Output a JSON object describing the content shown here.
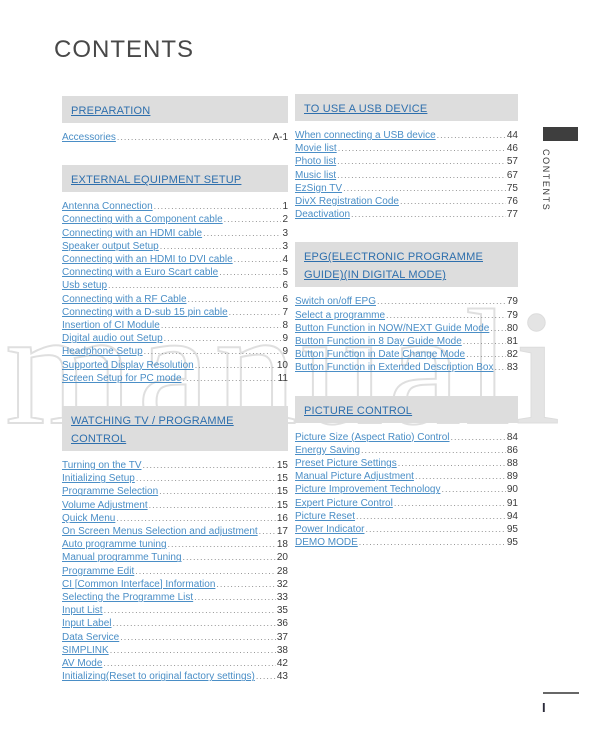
{
  "page": {
    "title": "CONTENTS"
  },
  "watermark": {
    "outline_text": "manual",
    "solid_text": "i"
  },
  "sidebar": {
    "tab_label": "CONTENTS",
    "page_marker": "I"
  },
  "colors": {
    "header_blue": "#2e6fad",
    "link_blue": "#4a8ec6",
    "bar_gray": "#dddddd",
    "watermark_gray": "#dfdfdf",
    "text_dark": "#3a3a3a",
    "tab_dark": "#3e3e3e"
  },
  "sections": {
    "preparation": {
      "header": "PREPARATION",
      "items": [
        {
          "label": "Accessories",
          "page": "A-1"
        }
      ]
    },
    "external_equipment_setup": {
      "header": "EXTERNAL EQUIPMENT SETUP",
      "items": [
        {
          "label": "Antenna Connection",
          "page": "1"
        },
        {
          "label": "Connecting with a Component cable",
          "page": "2"
        },
        {
          "label": "Connecting with an HDMI cable",
          "page": "3"
        },
        {
          "label": "Speaker output Setup",
          "page": "3"
        },
        {
          "label": "Connecting with an HDMI to DVI cable",
          "page": "4"
        },
        {
          "label": "Connecting with a Euro Scart cable",
          "page": "5"
        },
        {
          "label": "Usb setup",
          "page": "6"
        },
        {
          "label": "Connecting with a RF Cable",
          "page": "6"
        },
        {
          "label": "Connecting with a D-sub 15 pin cable",
          "page": "7"
        },
        {
          "label": "Insertion of CI Module",
          "page": "8"
        },
        {
          "label": "Digital audio out Setup",
          "page": "9"
        },
        {
          "label": "Headphone Setup",
          "page": "9"
        },
        {
          "label": "Supported Display Resolution",
          "page": "10"
        },
        {
          "label": "Screen Setup for PC mode",
          "page": "11"
        }
      ]
    },
    "watching_tv": {
      "header": "WATCHING TV / PROGRAMME CONTROL",
      "items": [
        {
          "label": "Turning on the TV",
          "page": "15"
        },
        {
          "label": "Initializing Setup",
          "page": "15"
        },
        {
          "label": "Programme Selection",
          "page": "15"
        },
        {
          "label": "Volume Adjustment",
          "page": "15"
        },
        {
          "label": "Quick Menu",
          "page": "16"
        },
        {
          "label": "On Screen Menus Selection and adjustment",
          "page": "17"
        },
        {
          "label": "Auto programme tuning",
          "page": "18"
        },
        {
          "label": "Manual programme Tuning",
          "page": "20"
        },
        {
          "label": "Programme Edit",
          "page": "28"
        },
        {
          "label": "CI [Common Interface] Information",
          "page": "32"
        },
        {
          "label": "Selecting the Programme List",
          "page": "33"
        },
        {
          "label": "Input List",
          "page": "35"
        },
        {
          "label": "Input Label",
          "page": "36"
        },
        {
          "label": "Data Service",
          "page": "37"
        },
        {
          "label": "SIMPLINK",
          "page": "38"
        },
        {
          "label": "AV Mode",
          "page": "42"
        },
        {
          "label": "Initializing(Reset to original factory settings)",
          "page": "43"
        }
      ]
    },
    "usb_device": {
      "header": "TO USE A USB DEVICE",
      "items": [
        {
          "label": "When connecting a USB device",
          "page": "44"
        },
        {
          "label": "Movie list",
          "page": "46"
        },
        {
          "label": "Photo list",
          "page": "57"
        },
        {
          "label": "Music list",
          "page": "67"
        },
        {
          "label": "EzSign TV",
          "page": "75"
        },
        {
          "label": "DivX Registration Code",
          "page": "76"
        },
        {
          "label": "Deactivation",
          "page": "77"
        }
      ]
    },
    "epg": {
      "header": "EPG(ELECTRONIC PROGRAMME GUIDE)(IN DIGITAL MODE)",
      "items": [
        {
          "label": "Switch on/off EPG",
          "page": "79"
        },
        {
          "label": "Select a programme",
          "page": "79"
        },
        {
          "label": "Button Function in NOW/NEXT Guide Mode",
          "page": "80"
        },
        {
          "label": "Button Function in 8 Day Guide Mode",
          "page": "81"
        },
        {
          "label": "Button Function in Date Change Mode",
          "page": "82"
        },
        {
          "label": "Button Function in Extended Description Box",
          "page": "83"
        }
      ]
    },
    "picture_control": {
      "header": "PICTURE CONTROL",
      "items": [
        {
          "label": "Picture Size (Aspect Ratio) Control",
          "page": "84"
        },
        {
          "label": "Energy Saving",
          "page": "86"
        },
        {
          "label": "Preset Picture Settings",
          "page": "88"
        },
        {
          "label": "Manual Picture Adjustment",
          "page": "89"
        },
        {
          "label": "Picture Improvement Technology",
          "page": "90"
        },
        {
          "label": "Expert Picture Control",
          "page": "91"
        },
        {
          "label": "Picture Reset",
          "page": "94"
        },
        {
          "label": "Power Indicator",
          "page": "95"
        },
        {
          "label": "DEMO MODE",
          "page": "95"
        }
      ]
    }
  }
}
